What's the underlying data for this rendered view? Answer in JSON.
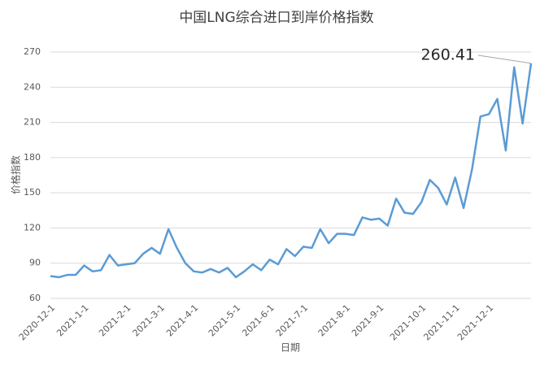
{
  "chart_data": {
    "type": "line",
    "title": "中国LNG综合进口到岸价格指数",
    "x_label": "日期",
    "y_label": "价格指数",
    "categories": [
      "2020-12-1",
      null,
      null,
      null,
      "2021-1-1",
      null,
      null,
      null,
      null,
      "2021-2-1",
      null,
      null,
      null,
      "2021-3-1",
      null,
      null,
      null,
      "2021-4-1",
      null,
      null,
      null,
      null,
      "2021-5-1",
      null,
      null,
      null,
      "2021-6-1",
      null,
      null,
      null,
      "2021-7-1",
      null,
      null,
      null,
      null,
      "2021-8-1",
      null,
      null,
      null,
      "2021-9-1",
      null,
      null,
      null,
      null,
      "2021-10-1",
      null,
      null,
      null,
      "2021-11-1",
      null,
      null,
      null,
      "2021-12-1",
      null,
      null,
      null,
      null,
      null
    ],
    "series": [
      {
        "name": "价格指数",
        "color": "#5b9bd5",
        "values": [
          79,
          78,
          80,
          80,
          88,
          83,
          84,
          97,
          88,
          89,
          90,
          98,
          103,
          98,
          119,
          103,
          90,
          83,
          82,
          85,
          82,
          86,
          78,
          83,
          89,
          84,
          93,
          89,
          102,
          96,
          104,
          103,
          119,
          107,
          115,
          115,
          114,
          129,
          127,
          128,
          122,
          145,
          133,
          132,
          142,
          161,
          154,
          140,
          163,
          137,
          170,
          215,
          217,
          230,
          186,
          257,
          209,
          260.41
        ]
      }
    ],
    "ylim": [
      60,
      270
    ],
    "yticks": [
      60,
      90,
      120,
      150,
      180,
      210,
      240,
      270
    ],
    "grid": true
  }
}
